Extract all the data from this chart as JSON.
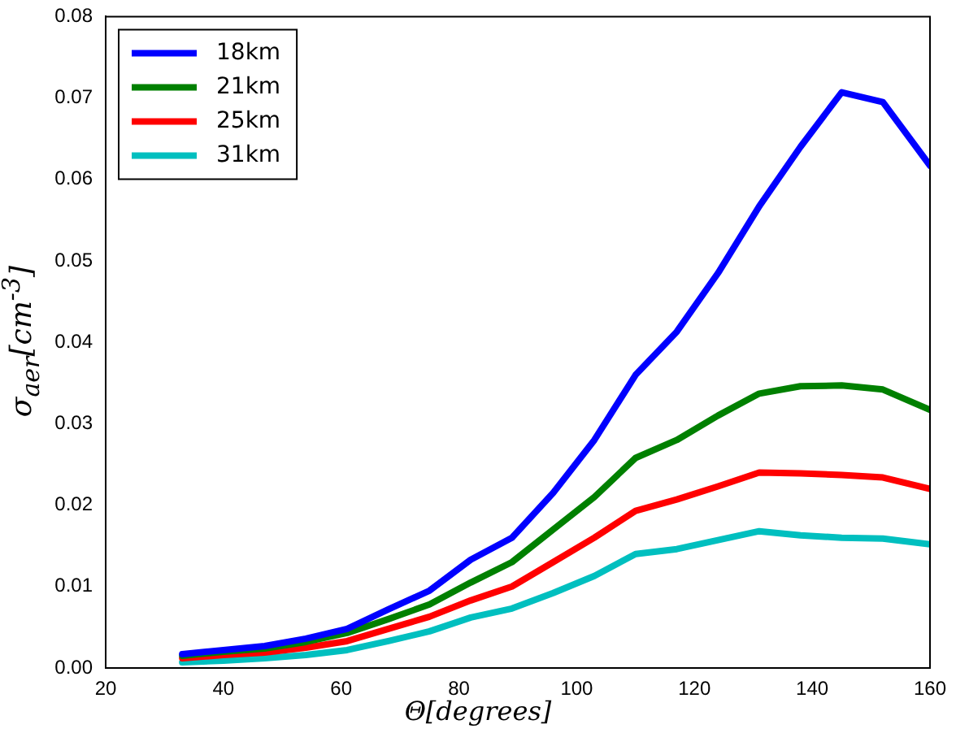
{
  "chart_data": {
    "type": "line",
    "xlabel": "Θ[degrees]",
    "ylabel": "σ$_{aer}$[cm$^{-3}$]",
    "x": [
      33,
      40,
      47,
      54,
      61,
      68,
      75,
      82,
      89,
      96,
      103,
      110,
      117,
      124,
      131,
      138,
      145,
      152,
      160
    ],
    "series": [
      {
        "name": "18km",
        "color": "#0000ff",
        "values": [
          0.0017,
          0.0022,
          0.0027,
          0.0036,
          0.0048,
          0.0072,
          0.0095,
          0.0133,
          0.016,
          0.0215,
          0.028,
          0.036,
          0.0413,
          0.0485,
          0.0567,
          0.064,
          0.0707,
          0.0695,
          0.0617
        ]
      },
      {
        "name": "21km",
        "color": "#008000",
        "values": [
          0.0015,
          0.002,
          0.0024,
          0.0032,
          0.0043,
          0.006,
          0.0078,
          0.0105,
          0.013,
          0.017,
          0.021,
          0.0258,
          0.028,
          0.031,
          0.0337,
          0.0346,
          0.0347,
          0.0342,
          0.0317
        ]
      },
      {
        "name": "25km",
        "color": "#ff0000",
        "values": [
          0.0012,
          0.0016,
          0.0019,
          0.0025,
          0.0033,
          0.0048,
          0.0063,
          0.0083,
          0.01,
          0.013,
          0.016,
          0.0193,
          0.0207,
          0.0223,
          0.024,
          0.0239,
          0.0237,
          0.0234,
          0.022
        ]
      },
      {
        "name": "31km",
        "color": "#00bfbf",
        "values": [
          0.0007,
          0.0009,
          0.0012,
          0.0016,
          0.0022,
          0.0033,
          0.0045,
          0.0062,
          0.0073,
          0.0092,
          0.0113,
          0.014,
          0.0146,
          0.0157,
          0.0168,
          0.0163,
          0.016,
          0.0159,
          0.0152
        ]
      }
    ],
    "xlim": [
      20,
      160
    ],
    "xticks": [
      20,
      40,
      60,
      80,
      100,
      120,
      140,
      160
    ],
    "ylim": [
      0,
      0.08
    ],
    "yticks": [
      {
        "value": 0,
        "label": "0.00"
      },
      {
        "value": 0.01,
        "label": "0.01"
      },
      {
        "value": 0.02,
        "label": "0.02"
      },
      {
        "value": 0.03,
        "label": "0.03"
      },
      {
        "value": 0.04,
        "label": "0.04"
      },
      {
        "value": 0.05,
        "label": "0.05"
      },
      {
        "value": 0.06,
        "label": "0.06"
      },
      {
        "value": 0.07,
        "label": "0.07"
      },
      {
        "value": 0.08,
        "label": "0.08"
      }
    ],
    "grid": false,
    "legend": "top left",
    "marker": "none",
    "line_style": "solid"
  }
}
